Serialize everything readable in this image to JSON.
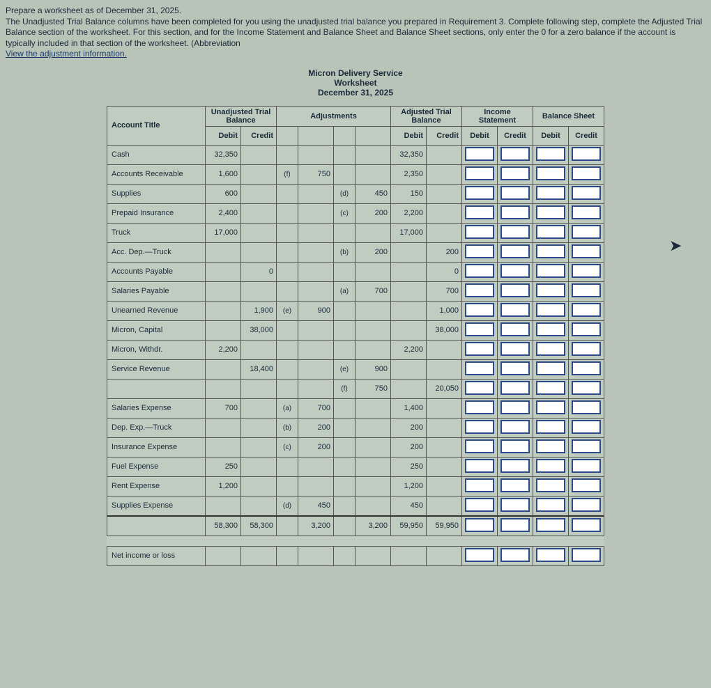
{
  "instructions": {
    "l1": "Prepare a worksheet as of December 31, 2025.",
    "l2": "The Unadjusted Trial Balance columns have been completed for you using the unadjusted trial balance you prepared in Requirement 3. Complete following step, complete the Adjusted Trial Balance section of the worksheet. For this section, and for the Income Statement and Balance Sheet and Balance Sheet sections, only enter the 0 for a zero balance if the account is typically included in that section of the worksheet. (Abbreviation",
    "link": "View the adjustment information."
  },
  "header": {
    "company": "Micron Delivery Service",
    "doc": "Worksheet",
    "date": "December 31, 2025"
  },
  "group_headers": {
    "unadj": "Unadjusted Trial Balance",
    "adj": "Adjustments",
    "adjtb": "Adjusted Trial Balance",
    "inc": "Income Statement",
    "bal": "Balance Sheet"
  },
  "col_headers": {
    "acct": "Account Title",
    "dr": "Debit",
    "cr": "Credit"
  },
  "rows": [
    {
      "acct": "Cash",
      "ud": "32,350",
      "uc": "",
      "ar1": "",
      "av1": "",
      "ar2": "",
      "av2": "",
      "ad": "32,350",
      "ac": ""
    },
    {
      "acct": "Accounts Receivable",
      "ud": "1,600",
      "uc": "",
      "ar1": "(f)",
      "av1": "750",
      "ar2": "",
      "av2": "",
      "ad": "2,350",
      "ac": ""
    },
    {
      "acct": "Supplies",
      "ud": "600",
      "uc": "",
      "ar1": "",
      "av1": "",
      "ar2": "(d)",
      "av2": "450",
      "ad": "150",
      "ac": ""
    },
    {
      "acct": "Prepaid Insurance",
      "ud": "2,400",
      "uc": "",
      "ar1": "",
      "av1": "",
      "ar2": "(c)",
      "av2": "200",
      "ad": "2,200",
      "ac": ""
    },
    {
      "acct": "Truck",
      "ud": "17,000",
      "uc": "",
      "ar1": "",
      "av1": "",
      "ar2": "",
      "av2": "",
      "ad": "17,000",
      "ac": ""
    },
    {
      "acct": "Acc. Dep.—Truck",
      "ud": "",
      "uc": "",
      "ar1": "",
      "av1": "",
      "ar2": "(b)",
      "av2": "200",
      "ad": "",
      "ac": "200"
    },
    {
      "acct": "Accounts Payable",
      "ud": "",
      "uc": "0",
      "ar1": "",
      "av1": "",
      "ar2": "",
      "av2": "",
      "ad": "",
      "ac": "0"
    },
    {
      "acct": "Salaries Payable",
      "ud": "",
      "uc": "",
      "ar1": "",
      "av1": "",
      "ar2": "(a)",
      "av2": "700",
      "ad": "",
      "ac": "700"
    },
    {
      "acct": "Unearned Revenue",
      "ud": "",
      "uc": "1,900",
      "ar1": "(e)",
      "av1": "900",
      "ar2": "",
      "av2": "",
      "ad": "",
      "ac": "1,000"
    },
    {
      "acct": "Micron, Capital",
      "ud": "",
      "uc": "38,000",
      "ar1": "",
      "av1": "",
      "ar2": "",
      "av2": "",
      "ad": "",
      "ac": "38,000"
    },
    {
      "acct": "Micron, Withdr.",
      "ud": "2,200",
      "uc": "",
      "ar1": "",
      "av1": "",
      "ar2": "",
      "av2": "",
      "ad": "2,200",
      "ac": ""
    },
    {
      "acct": "Service Revenue",
      "ud": "",
      "uc": "18,400",
      "ar1": "",
      "av1": "",
      "ar2": "(e)",
      "av2": "900",
      "ad": "",
      "ac": ""
    },
    {
      "acct": "",
      "ud": "",
      "uc": "",
      "ar1": "",
      "av1": "",
      "ar2": "(f)",
      "av2": "750",
      "ad": "",
      "ac": "20,050"
    },
    {
      "acct": "Salaries Expense",
      "ud": "700",
      "uc": "",
      "ar1": "(a)",
      "av1": "700",
      "ar2": "",
      "av2": "",
      "ad": "1,400",
      "ac": ""
    },
    {
      "acct": "Dep. Exp.—Truck",
      "ud": "",
      "uc": "",
      "ar1": "(b)",
      "av1": "200",
      "ar2": "",
      "av2": "",
      "ad": "200",
      "ac": ""
    },
    {
      "acct": "Insurance Expense",
      "ud": "",
      "uc": "",
      "ar1": "(c)",
      "av1": "200",
      "ar2": "",
      "av2": "",
      "ad": "200",
      "ac": ""
    },
    {
      "acct": "Fuel Expense",
      "ud": "250",
      "uc": "",
      "ar1": "",
      "av1": "",
      "ar2": "",
      "av2": "",
      "ad": "250",
      "ac": ""
    },
    {
      "acct": "Rent Expense",
      "ud": "1,200",
      "uc": "",
      "ar1": "",
      "av1": "",
      "ar2": "",
      "av2": "",
      "ad": "1,200",
      "ac": ""
    },
    {
      "acct": "Supplies Expense",
      "ud": "",
      "uc": "",
      "ar1": "(d)",
      "av1": "450",
      "ar2": "",
      "av2": "",
      "ad": "450",
      "ac": ""
    }
  ],
  "totals": {
    "ud": "58,300",
    "uc": "58,300",
    "adj_d": "3,200",
    "adj_c": "3,200",
    "ad": "59,950",
    "ac": "59,950"
  },
  "net": "Net income or loss"
}
